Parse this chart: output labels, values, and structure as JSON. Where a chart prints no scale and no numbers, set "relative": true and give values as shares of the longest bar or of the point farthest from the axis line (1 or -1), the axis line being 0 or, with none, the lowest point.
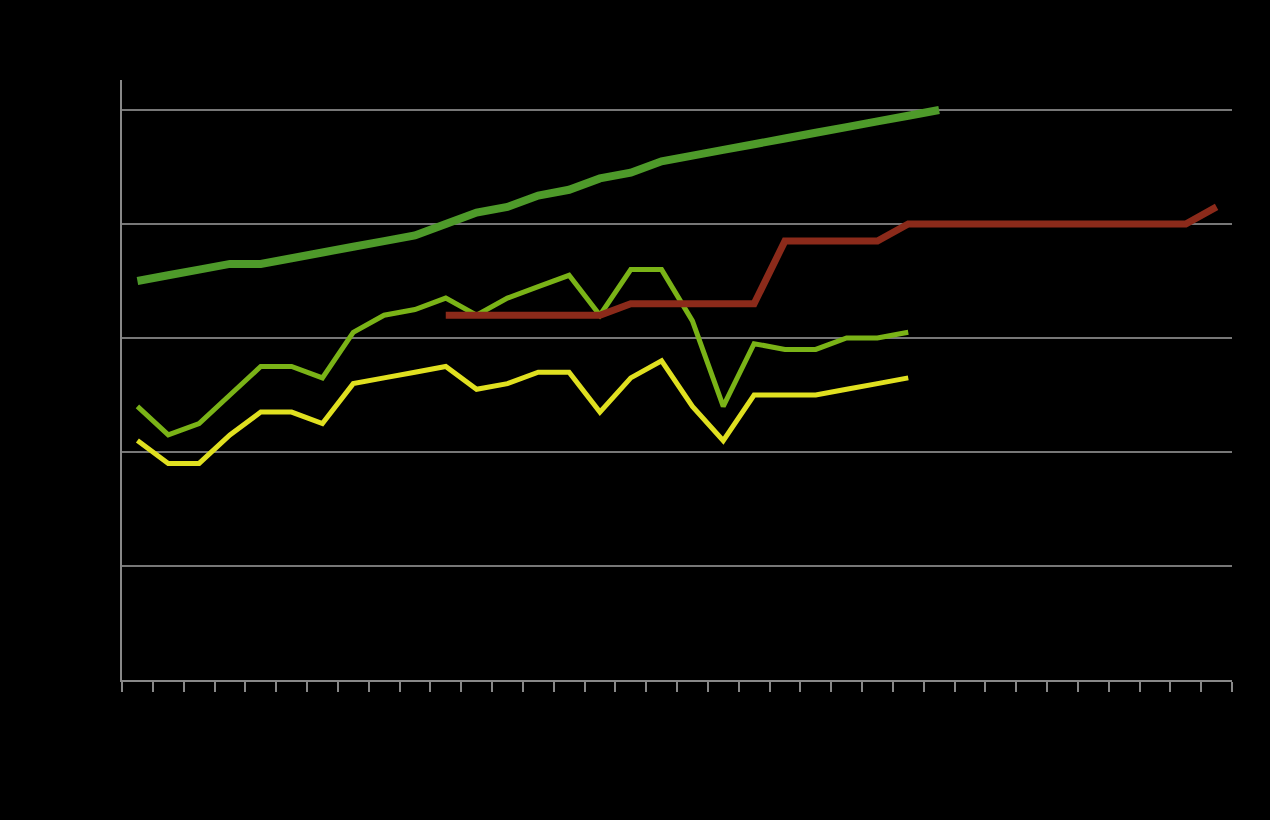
{
  "chart_data": {
    "type": "line",
    "relative": true,
    "grid": "y",
    "marker": "none",
    "categories": [
      null,
      null,
      null,
      null,
      null,
      null,
      null,
      null,
      null,
      null,
      null,
      null,
      null,
      null,
      null,
      null,
      null,
      null,
      null,
      null,
      null,
      null,
      null,
      null,
      null,
      null,
      null,
      null,
      null,
      null,
      null,
      null,
      null,
      null,
      null,
      null
    ],
    "series": [
      {
        "color": "#4e9a2a",
        "values": [
          0.7,
          0.71,
          0.72,
          0.73,
          0.73,
          0.74,
          0.75,
          0.76,
          0.77,
          0.78,
          0.8,
          0.82,
          0.83,
          0.85,
          0.86,
          0.88,
          0.89,
          0.91,
          0.92,
          0.93,
          0.94,
          0.95,
          0.96,
          0.97,
          0.98,
          0.99,
          1.0,
          null,
          null,
          null,
          null,
          null,
          null,
          null,
          null,
          null
        ]
      },
      {
        "color": "#7ab317",
        "values": [
          0.48,
          0.43,
          0.45,
          0.5,
          0.55,
          0.55,
          0.53,
          0.61,
          0.64,
          0.65,
          0.67,
          0.64,
          0.67,
          0.69,
          0.71,
          0.64,
          0.72,
          0.72,
          0.63,
          0.48,
          0.59,
          0.58,
          0.58,
          0.6,
          0.6,
          0.61,
          null,
          null,
          null,
          null,
          null,
          null,
          null,
          null,
          null,
          null
        ]
      },
      {
        "color": "#e0e020",
        "values": [
          0.42,
          0.38,
          0.38,
          0.43,
          0.47,
          0.47,
          0.45,
          0.52,
          0.53,
          0.54,
          0.55,
          0.51,
          0.52,
          0.54,
          0.54,
          0.47,
          0.53,
          0.56,
          0.48,
          0.42,
          0.5,
          0.5,
          0.5,
          0.51,
          0.52,
          0.53,
          null,
          null,
          null,
          null,
          null,
          null,
          null,
          null,
          null,
          null
        ]
      },
      {
        "color": "#8b2a1a",
        "values": [
          null,
          null,
          null,
          null,
          null,
          null,
          null,
          null,
          null,
          null,
          0.64,
          0.64,
          0.64,
          0.64,
          0.64,
          0.64,
          0.66,
          0.66,
          0.66,
          0.66,
          0.66,
          0.77,
          0.77,
          0.77,
          0.77,
          0.8,
          0.8,
          0.8,
          0.8,
          0.8,
          0.8,
          0.8,
          0.8,
          0.8,
          0.8,
          0.83
        ]
      }
    ]
  }
}
